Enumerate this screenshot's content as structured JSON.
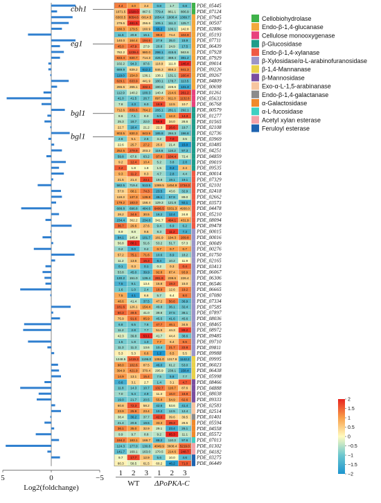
{
  "chart_data": {
    "type": "heatmap",
    "annotation_genes": [
      {
        "label": "cbh1",
        "row": 1
      },
      {
        "label": "eg1",
        "row": 7
      },
      {
        "label": "bgl1",
        "row": 19
      },
      {
        "label": "bgl1",
        "row": 23
      }
    ],
    "columns": {
      "tick_labels": [
        "1",
        "2",
        "3",
        "1",
        "2",
        "3"
      ],
      "group_labels": [
        "WT",
        "ΔPoPKA-C"
      ]
    },
    "bar_axis": {
      "ticks": [
        "5",
        "0",
        "−5"
      ],
      "label": "Log2(foldchange)",
      "range": [
        -5,
        5
      ]
    },
    "color_scale": {
      "ticks": [
        "2",
        "1.5",
        "1",
        "0.5",
        "0",
        "−0.5",
        "−1",
        "−1.5",
        "−2"
      ],
      "range": [
        -2,
        2
      ]
    },
    "legend": [
      {
        "label": "Cellobiohydrolase",
        "color": "#3fb24a"
      },
      {
        "label": "Endo-β-1,4-glucanase",
        "color": "#f3a93c"
      },
      {
        "label": "Cellulose monooxygenase",
        "color": "#e8427d"
      },
      {
        "label": "β-Glucosidase",
        "color": "#1f9d8a"
      },
      {
        "label": "Endo-β-1,4-xylanase",
        "color": "#ef5a44"
      },
      {
        "label": "β-Xylosidase/α-L-arabinofuranosidase",
        "color": "#9b95c9"
      },
      {
        "label": "β-1,4-Mannanase",
        "color": "#e8d14a"
      },
      {
        "label": "β-Mannosidase",
        "color": "#7a4fa0"
      },
      {
        "label": "Exo-α-L-1,5-arabinanase",
        "color": "#f7c59f"
      },
      {
        "label": "Endo-β-1,4-galactanase",
        "color": "#8c8c8c"
      },
      {
        "label": "α-Galactosidase",
        "color": "#f08a2b"
      },
      {
        "label": "α-L-fucosidase",
        "color": "#3fd0c2"
      },
      {
        "label": "Acetyl xylan esterase",
        "color": "#f4a1a8"
      },
      {
        "label": "Feruloyl esterase",
        "color": "#1e63b0"
      }
    ],
    "rows": [
      {
        "gene": "PDE_05445",
        "values": [
          "4.4",
          "4.0",
          "3.4",
          "0.8",
          "1.7",
          "0.8"
        ],
        "fc": -2.5,
        "cat": 0
      },
      {
        "gene": "PDE_07124",
        "values": [
          "1071.5",
          "1328.0",
          "867.5",
          "779.4",
          "861.1",
          "806.9"
        ],
        "fc": -0.6,
        "cat": 0
      },
      {
        "gene": "PDE_07945",
        "values": [
          "6303.5",
          "8054.6",
          "6014.5",
          "1654.4",
          "1808.4",
          "1369.7"
        ],
        "fc": -2.2,
        "cat": 1
      },
      {
        "gene": "PDE_00507",
        "values": [
          "279.6",
          "481.5",
          "256.6",
          "105.1",
          "111.3",
          "125.7"
        ],
        "fc": -1.8,
        "cat": 1
      },
      {
        "gene": "PDE_02886",
        "values": [
          "180.3",
          "179.5",
          "160.9",
          "65.2",
          "106.1",
          "142.8"
        ],
        "fc": -1.1,
        "cat": 1
      },
      {
        "gene": "PDE_05193",
        "values": [
          "11.6",
          "20.8",
          "16.1",
          "99.0",
          "74.4",
          "104.9"
        ],
        "fc": 2.4,
        "cat": 1
      },
      {
        "gene": "PDE_07711",
        "values": [
          "140.0",
          "164.4",
          "194.6",
          "27.9",
          "35.0",
          "15.9"
        ],
        "fc": -2.5,
        "cat": 1
      },
      {
        "gene": "PDE_06439",
        "values": [
          "45.0",
          "47.9",
          "27.9",
          "20.8",
          "24.9",
          "17.5"
        ],
        "fc": -0.9,
        "cat": 1
      },
      {
        "gene": "PDE_07928",
        "values": [
          "782.2",
          "1239.4",
          "980.0",
          "298.1",
          "415.6",
          "563.6"
        ],
        "fc": -1.3,
        "cat": 1
      },
      {
        "gene": "PDE_07929",
        "values": [
          "833.4",
          "830.7",
          "714.3",
          "426.0",
          "459.4",
          "381.2"
        ],
        "fc": -0.9,
        "cat": 1
      },
      {
        "gene": "PDE_09014",
        "values": [
          "102.2",
          "94.3",
          "97.6",
          "118.9",
          "111.8",
          "146.4"
        ],
        "fc": 0.3,
        "cat": 1
      },
      {
        "gene": "PDE_09226",
        "values": [
          "689.9",
          "839.2",
          "612.2",
          "846.3",
          "858.2",
          "941.3"
        ],
        "fc": 0.3,
        "cat": 1
      },
      {
        "gene": "PDE_09267",
        "values": [
          "119.0",
          "154.0",
          "136.1",
          "138.1",
          "131.1",
          "160.4"
        ],
        "fc": 0.1,
        "cat": 1
      },
      {
        "gene": "PDE_04809",
        "values": [
          "629.1",
          "633.9",
          "441.9",
          "180.1",
          "178.7",
          "113.5"
        ],
        "fc": -1.8,
        "cat": 1
      },
      {
        "gene": "PDE_00698",
        "values": [
          "265.6",
          "265.1",
          "332.1",
          "190.6",
          "228.6",
          "131.3"
        ],
        "fc": -0.6,
        "cat": 1
      },
      {
        "gene": "PDE_01261",
        "values": [
          "112.9",
          "140.2",
          "100.3",
          "140.4",
          "214.6",
          "261.2"
        ],
        "fc": 0.8,
        "cat": 2
      },
      {
        "gene": "PDE_05633",
        "values": [
          "41.0",
          "41.5",
          "26.7",
          "897.0",
          "911.0",
          "1132.6"
        ],
        "fc": 4.6,
        "cat": 2
      },
      {
        "gene": "PDE_06768",
        "values": [
          "7.8",
          "4.3",
          "6.0",
          "16.9",
          "12.5",
          "10.7"
        ],
        "fc": 1.0,
        "cat": 2
      },
      {
        "gene": "PDE_00579",
        "values": [
          "712.6",
          "839.6",
          "764.2",
          "265.1",
          "281.1",
          "292.1"
        ],
        "fc": -1.4,
        "cat": 3
      },
      {
        "gene": "PDE_01277",
        "values": [
          "8.6",
          "7.1",
          "8.3",
          "6.5",
          "12.3",
          "14.3"
        ],
        "fc": 0.4,
        "cat": 3
      },
      {
        "gene": "PDE_01565",
        "values": [
          "25.3",
          "18.7",
          "22.0",
          "56.5",
          "34.0",
          "28.6"
        ],
        "fc": 0.7,
        "cat": 3
      },
      {
        "gene": "PDE_02108",
        "values": [
          "22.7",
          "18.4",
          "21.2",
          "22.3",
          "26.6",
          "19.7"
        ],
        "fc": 0.1,
        "cat": 3
      },
      {
        "gene": "PDE_02736",
        "values": [
          "803.5",
          "830.3",
          "843.9",
          "185.8",
          "284.3",
          "196.8"
        ],
        "fc": -1.9,
        "cat": 3
      },
      {
        "gene": "PDE_03969",
        "values": [
          "2.6",
          "5.1",
          "2.6",
          "3.2",
          "7.0",
          "3.5"
        ],
        "fc": 0.3,
        "cat": 3
      },
      {
        "gene": "PDE_03485",
        "values": [
          "22.6",
          "25.7",
          "27.2",
          "25.0",
          "21.4",
          "15.0"
        ],
        "fc": -0.3,
        "cat": 3
      },
      {
        "gene": "PDE_04251",
        "values": [
          "252.5",
          "279.9",
          "203.2",
          "116.6",
          "116.2",
          "97.3"
        ],
        "fc": -1.1,
        "cat": 3
      },
      {
        "gene": "PDE_04859",
        "values": [
          "59.8",
          "67.6",
          "63.2",
          "97.8",
          "104.4",
          "72.4"
        ],
        "fc": 0.5,
        "cat": 3
      },
      {
        "gene": "PDE_09019",
        "values": [
          "9.2",
          "12.4",
          "10.4",
          "5.2",
          "3.8",
          "2.8"
        ],
        "fc": -1.5,
        "cat": 3
      },
      {
        "gene": "PDE_09535",
        "values": [
          "3.2",
          "1.8",
          "1.8",
          "1.5",
          "0.3",
          "2.4"
        ],
        "fc": -0.8,
        "cat": 3
      },
      {
        "gene": "PDE_00014",
        "values": [
          "9.3",
          "11.2",
          "8.3",
          "4.7",
          "2.8",
          "4.4"
        ],
        "fc": -1.3,
        "cat": 4
      },
      {
        "gene": "PDE_07329",
        "values": [
          "21.5",
          "21.4",
          "23.1",
          "19.8",
          "19.1",
          "19.1"
        ],
        "fc": -0.2,
        "cat": 4
      },
      {
        "gene": "PDE_02101",
        "values": [
          "582.5",
          "719.4",
          "513.5",
          "1369.5",
          "1454.9",
          "1734.3"
        ],
        "fc": 1.4,
        "cat": 4
      },
      {
        "gene": "PDE_02418",
        "values": [
          "57.8",
          "68.1",
          "74.3",
          "23.5",
          "43.6",
          "32.9"
        ],
        "fc": -1.0,
        "cat": 4
      },
      {
        "gene": "PDE_02662",
        "values": [
          "118.3",
          "137.3",
          "139.8",
          "46.1",
          "57.9",
          "89.0"
        ],
        "fc": -1.1,
        "cat": 4
      },
      {
        "gene": "PDE_03573",
        "values": [
          "179.2",
          "183.0",
          "158.4",
          "129.3",
          "121.8",
          "92.1"
        ],
        "fc": -0.5,
        "cat": 4
      },
      {
        "gene": "PDE_04478",
        "values": [
          "688.8",
          "696.8",
          "484.6",
          "6406.5",
          "5331.3",
          "4930.0"
        ],
        "fc": 3.1,
        "cat": 4
      },
      {
        "gene": "PDE_05210",
        "values": [
          "28.2",
          "34.6",
          "30.5",
          "16.2",
          "12.4",
          "24.8"
        ],
        "fc": -0.8,
        "cat": 4
      },
      {
        "gene": "PDE_08094",
        "values": [
          "234.4",
          "362.2",
          "234.8",
          "341.7",
          "494.1",
          "431.9"
        ],
        "fc": 0.6,
        "cat": 4
      },
      {
        "gene": "PDE_09478",
        "values": [
          "36.7",
          "29.6",
          "27.6",
          "9.4",
          "6.9",
          "6.2"
        ],
        "fc": -2.1,
        "cat": 4
      },
      {
        "gene": "PDE_00015",
        "values": [
          "8.9",
          "8.8",
          "9.6",
          "8.3",
          "11.2",
          "7.3"
        ],
        "fc": 0.1,
        "cat": 5
      },
      {
        "gene": "PDE_00016",
        "values": [
          "94.1",
          "145.4",
          "101.7",
          "181.9",
          "194.3",
          "209.8"
        ],
        "fc": 0.9,
        "cat": 5
      },
      {
        "gene": "PDE_00049",
        "values": [
          "56.8",
          "88.1",
          "51.6",
          "53.2",
          "51.7",
          "57.3"
        ],
        "fc": -0.2,
        "cat": 5
      },
      {
        "gene": "PDE_00276",
        "values": [
          "0.2",
          "0.0",
          "0.2",
          "0.7",
          "0.7",
          "0.7"
        ],
        "fc": 1.8,
        "cat": 5
      },
      {
        "gene": "PDE_01750",
        "values": [
          "57.2",
          "75.1",
          "71.6",
          "10.6",
          "8.9",
          "18.2"
        ],
        "fc": -2.4,
        "cat": 5
      },
      {
        "gene": "PDE_02165",
        "values": [
          "11.2",
          "13.6",
          "16.3",
          "8.4",
          "10.2",
          "11.9"
        ],
        "fc": -0.4,
        "cat": 5
      },
      {
        "gene": "PDE_03413",
        "values": [
          "0.1",
          "0.3",
          "0.1",
          "0.2",
          "0.3",
          "0.4"
        ],
        "fc": 0.6,
        "cat": 5
      },
      {
        "gene": "PDE_06067",
        "values": [
          "53.8",
          "45.0",
          "39.9",
          "92.8",
          "87.4",
          "93.9"
        ],
        "fc": 0.9,
        "cat": 5
      },
      {
        "gene": "PDE_06306",
        "values": [
          "130.2",
          "151.0",
          "139.4",
          "281.9",
          "238.6",
          "226.4"
        ],
        "fc": 0.7,
        "cat": 5
      },
      {
        "gene": "PDE_06546",
        "values": [
          "7.5",
          "9.1",
          "13.4",
          "15.8",
          "19.3",
          "15.0"
        ],
        "fc": 0.6,
        "cat": 5
      },
      {
        "gene": "PDE_06665",
        "values": [
          "1.6",
          "1.0",
          "2.4",
          "18.9",
          "12.6",
          "19.2"
        ],
        "fc": 3.2,
        "cat": 5
      },
      {
        "gene": "PDE_07080",
        "values": [
          "7.5",
          "4.1",
          "6.6",
          "5.7",
          "6.4",
          "8.0"
        ],
        "fc": 0.1,
        "cat": 5
      },
      {
        "gene": "PDE_07334",
        "values": [
          "48.6",
          "41.4",
          "37.5",
          "47.2",
          "50.6",
          "36.9"
        ],
        "fc": 0.0,
        "cat": 5
      },
      {
        "gene": "PDE_07585",
        "values": [
          "181.6",
          "126.1",
          "154.4",
          "49.8",
          "36.1",
          "32.4"
        ],
        "fc": -2.0,
        "cat": 5
      },
      {
        "gene": "PDE_07897",
        "values": [
          "50.3",
          "49.5",
          "41.0",
          "39.8",
          "37.5",
          "38.1"
        ],
        "fc": -0.2,
        "cat": 5
      },
      {
        "gene": "PDE_08036",
        "values": [
          "75.9",
          "91.6",
          "85.9",
          "45.5",
          "41.6",
          "45.6"
        ],
        "fc": -0.9,
        "cat": 5
      },
      {
        "gene": "PDE_08465",
        "values": [
          "6.8",
          "6.5",
          "7.8",
          "47.7",
          "46.1",
          "34.5"
        ],
        "fc": 2.8,
        "cat": 5
      },
      {
        "gene": "PDE_08972",
        "values": [
          "11.2",
          "2.8",
          "7.7",
          "51.5",
          "44.3",
          "89.2"
        ],
        "fc": 2.9,
        "cat": 5
      },
      {
        "gene": "PDE_09485",
        "values": [
          "42.3",
          "39.8",
          "53.1",
          "41.7",
          "44.4",
          "38.6"
        ],
        "fc": 0.0,
        "cat": 5
      },
      {
        "gene": "PDE_09710",
        "values": [
          "1.5",
          "1.8",
          "1.0",
          "7.7",
          "6.4",
          "8.6"
        ],
        "fc": 2.4,
        "cat": 5
      },
      {
        "gene": "PDE_09811",
        "values": [
          "11.3",
          "11.3",
          "13.6",
          "10.4",
          "21.7",
          "22.8"
        ],
        "fc": 0.4,
        "cat": 5
      },
      {
        "gene": "PDE_09988",
        "values": [
          "5.3",
          "5.3",
          "6.6",
          "1.2",
          "6.5",
          "5.5"
        ],
        "fc": -0.3,
        "cat": 5
      },
      {
        "gene": "PDE_09995",
        "values": [
          "1248.5",
          "1419.3",
          "1196.0",
          "1351.0",
          "1317.9",
          "1142.2"
        ],
        "fc": 0.0,
        "cat": 6
      },
      {
        "gene": "PDE_06023",
        "values": [
          "98.0",
          "102.6",
          "87.5",
          "46.0",
          "61.2",
          "53.0"
        ],
        "fc": -0.7,
        "cat": 6
      },
      {
        "gene": "PDE_06438",
        "values": [
          "394.9",
          "421.9",
          "370.4",
          "295.9",
          "238.1",
          "158.4"
        ],
        "fc": -0.8,
        "cat": 6
      },
      {
        "gene": "PDE_05998",
        "values": [
          "14.9",
          "13.1",
          "15.4",
          "7.5",
          "5.8",
          "7.7"
        ],
        "fc": -1.0,
        "cat": 6
      },
      {
        "gene": "PDE_08466",
        "values": [
          "0.6",
          "3.1",
          "2.7",
          "1.4",
          "3.1",
          "4.7"
        ],
        "fc": 0.7,
        "cat": 7
      },
      {
        "gene": "PDE_04888",
        "values": [
          "11.8",
          "14.3",
          "10.7",
          "132.7",
          "116.7",
          "87.6"
        ],
        "fc": 3.2,
        "cat": 7
      },
      {
        "gene": "PDE_08038",
        "values": [
          "7.0",
          "5.4",
          "4.9",
          "11.3",
          "16.0",
          "16.8"
        ],
        "fc": 1.3,
        "cat": 7
      },
      {
        "gene": "PDE_09333",
        "values": [
          "19.0",
          "21.7",
          "20.5",
          "55.8",
          "54.9",
          "62.6"
        ],
        "fc": 1.5,
        "cat": 7
      },
      {
        "gene": "PDE_02583",
        "values": [
          "60.8",
          "72.3",
          "58.2",
          "42.6",
          "53.6",
          "41.4"
        ],
        "fc": -0.4,
        "cat": 8
      },
      {
        "gene": "PDE_02514",
        "values": [
          "23.9",
          "25.9",
          "23.4",
          "10.2",
          "12.5",
          "12.4"
        ],
        "fc": -1.0,
        "cat": 8
      },
      {
        "gene": "PDE_01401",
        "values": [
          "38.4",
          "36.2",
          "37.7",
          "42.0",
          "39.6",
          "39.5"
        ],
        "fc": 0.1,
        "cat": 9
      },
      {
        "gene": "PDE_05594",
        "values": [
          "21.4",
          "20.6",
          "19.5",
          "33.3",
          "39.3",
          "28.5"
        ],
        "fc": 0.7,
        "cat": 10
      },
      {
        "gene": "PDE_04558",
        "values": [
          "36.1",
          "35.0",
          "32.9",
          "29.1",
          "23.4",
          "26.1"
        ],
        "fc": -0.3,
        "cat": 10
      },
      {
        "gene": "PDE_05572",
        "values": [
          "9.9",
          "9.7",
          "8.8",
          "9.2",
          "85.3",
          "11.1"
        ],
        "fc": 1.6,
        "cat": 10
      },
      {
        "gene": "PDE_07013",
        "values": [
          "194.2",
          "183.1",
          "168.7",
          "88.2",
          "110.3",
          "97.6"
        ],
        "fc": -0.8,
        "cat": 11
      },
      {
        "gene": "PDE_01302",
        "values": [
          "124.3",
          "177.0",
          "130.8",
          "4049.9",
          "3608.4",
          "5219.0"
        ],
        "fc": 4.7,
        "cat": 12
      },
      {
        "gene": "PDE_04182",
        "values": [
          "141.7",
          "169.1",
          "163.0",
          "170.5",
          "214.6",
          "248.7"
        ],
        "fc": 0.4,
        "cat": 12
      },
      {
        "gene": "PDE_03275",
        "values": [
          "9.7",
          "17.7",
          "12.9",
          "5.6",
          "10.0",
          "4.6"
        ],
        "fc": -0.9,
        "cat": 13
      },
      {
        "gene": "PDE_06449",
        "values": [
          "60.3",
          "58.5",
          "61.5",
          "60.2",
          "46.2",
          "71.0"
        ],
        "fc": 0.0,
        "cat": 13
      }
    ]
  }
}
